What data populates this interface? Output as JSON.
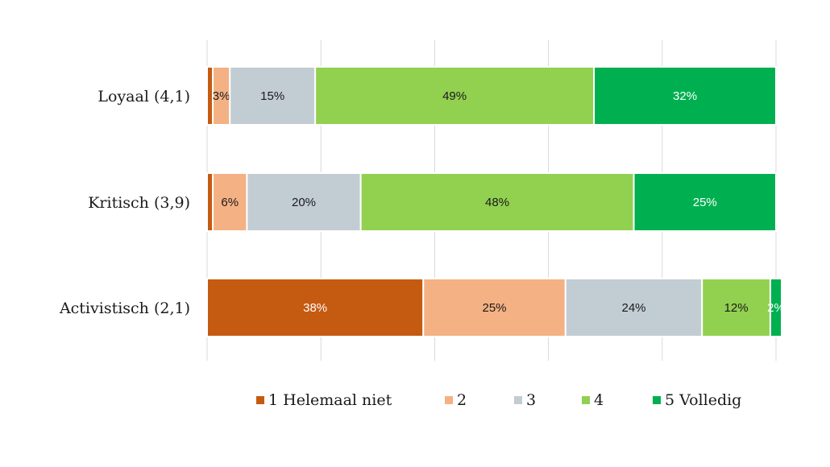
{
  "chart_data": {
    "type": "bar",
    "orientation": "horizontal",
    "stacked": true,
    "categories": [
      "Loyaal (4,1)",
      "Kritisch (3,9)",
      "Activistisch (2,1)"
    ],
    "xlim": [
      0,
      100
    ],
    "grid": true,
    "legend_position": "bottom",
    "series": [
      {
        "name": "1 Helemaal niet",
        "color": "#c55a11",
        "values": [
          1,
          1,
          38
        ],
        "labels": [
          "",
          "",
          "38%"
        ]
      },
      {
        "name": "2",
        "color": "#f4b183",
        "values": [
          3,
          6,
          25
        ],
        "labels": [
          "3%",
          "6%",
          "25%"
        ]
      },
      {
        "name": "3",
        "color": "#c2ccd3",
        "values": [
          15,
          20,
          24
        ],
        "labels": [
          "15%",
          "20%",
          "24%"
        ]
      },
      {
        "name": "4",
        "color": "#92d050",
        "values": [
          49,
          48,
          12
        ],
        "labels": [
          "49%",
          "48%",
          "12%"
        ]
      },
      {
        "name": "5 Volledig",
        "color": "#00b050",
        "values": [
          32,
          25,
          2
        ],
        "labels": [
          "32%",
          "25%",
          "2%"
        ]
      }
    ]
  }
}
